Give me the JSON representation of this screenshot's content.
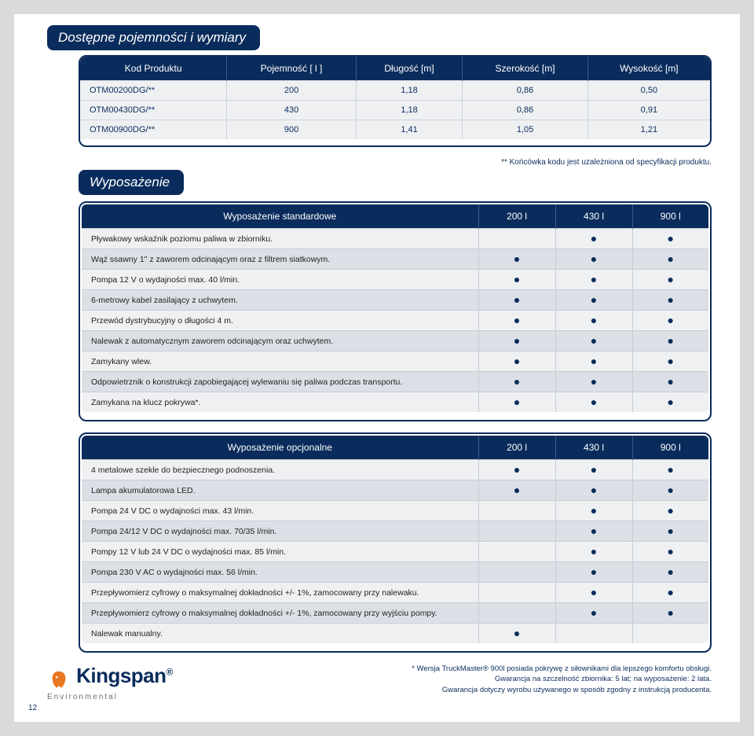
{
  "headings": {
    "main": "Dostępne pojemności i wymiary",
    "equip": "Wyposażenie"
  },
  "specTable": {
    "columns": [
      "Kod Produktu",
      "Pojemność [ l ]",
      "Długość [m]",
      "Szerokość [m]",
      "Wysokość [m]"
    ],
    "rows": [
      [
        "OTM00200DG/**",
        "200",
        "1,18",
        "0,86",
        "0,50"
      ],
      [
        "OTM00430DG/**",
        "430",
        "1,18",
        "0,86",
        "0,91"
      ],
      [
        "OTM00900DG/**",
        "900",
        "1,41",
        "1,05",
        "1,21"
      ]
    ]
  },
  "footnote1": "** Końcówka kodu jest uzależniona od specyfikacji produktu.",
  "stdTable": {
    "title": "Wyposażenie standardowe",
    "cols": [
      "200 l",
      "430 l",
      "900 l"
    ],
    "rows": [
      {
        "label": "Pływakowy wskaźnik poziomu paliwa w zbiorniku.",
        "v": [
          false,
          true,
          true
        ]
      },
      {
        "label": "Wąż ssawny 1\" z zaworem odcinającym oraz z filtrem siatkowym.",
        "v": [
          true,
          true,
          true
        ]
      },
      {
        "label": "Pompa 12 V o wydajności max. 40 l/min.",
        "v": [
          true,
          true,
          true
        ]
      },
      {
        "label": "6-metrowy kabel zasilający z uchwytem.",
        "v": [
          true,
          true,
          true
        ]
      },
      {
        "label": "Przewód dystrybucyjny o długości 4 m.",
        "v": [
          true,
          true,
          true
        ]
      },
      {
        "label": "Nalewak z automatycznym zaworem odcinającym oraz uchwytem.",
        "v": [
          true,
          true,
          true
        ]
      },
      {
        "label": "Zamykany wlew.",
        "v": [
          true,
          true,
          true
        ]
      },
      {
        "label": "Odpowietrznik o konstrukcji zapobiegającej wylewaniu się paliwa podczas transportu.",
        "v": [
          true,
          true,
          true
        ]
      },
      {
        "label": "Zamykana na klucz pokrywa*.",
        "v": [
          true,
          true,
          true
        ]
      }
    ]
  },
  "optTable": {
    "title": "Wyposażenie opcjonalne",
    "cols": [
      "200 l",
      "430 l",
      "900 l"
    ],
    "rows": [
      {
        "label": "4 metalowe szekle do bezpiecznego podnoszenia.",
        "v": [
          true,
          true,
          true
        ]
      },
      {
        "label": "Lampa akumulatorowa LED.",
        "v": [
          true,
          true,
          true
        ]
      },
      {
        "label": "Pompa 24 V DC o wydajności max. 43 l/min.",
        "v": [
          false,
          true,
          true
        ]
      },
      {
        "label": "Pompa 24/12 V DC o wydajności max. 70/35 l/min.",
        "v": [
          false,
          true,
          true
        ]
      },
      {
        "label": "Pompy 12 V lub 24 V DC o wydajności max. 85 l/min.",
        "v": [
          false,
          true,
          true
        ]
      },
      {
        "label": "Pompa 230 V AC o wydajności max. 56 l/min.",
        "v": [
          false,
          true,
          true
        ]
      },
      {
        "label": "Przepływomierz cyfrowy o maksymalnej dokładności +/- 1%, zamocowany przy nalewaku.",
        "v": [
          false,
          true,
          true
        ]
      },
      {
        "label": "Przepływomierz cyfrowy o maksymalnej dokładności +/- 1%, zamocowany przy wyjściu pompy.",
        "v": [
          false,
          true,
          true
        ]
      },
      {
        "label": "Nalewak manualny.",
        "v": [
          true,
          false,
          false
        ]
      }
    ]
  },
  "bottomNotes": [
    "* Wersja TruckMaster® 900l posiada pokrywę z siłownikami dla lepszego komfortu obsługi.",
    "Gwarancja na szczelność zbiornika: 5 lat; na wyposażenie: 2 lata.",
    "Gwarancja dotyczy wyrobu używanego w sposób zgodny z instrukcją producenta."
  ],
  "logo": {
    "brand": "Kingspan",
    "sub": "Environmental"
  },
  "pageNumber": "12",
  "colors": {
    "brandBlue": "#0a2c5c",
    "rowLight": "#eef0f2",
    "rowDark": "#dce0e6",
    "border": "#c8ccd4",
    "pageBg": "#ffffff",
    "outerBg": "#d9dadb"
  }
}
